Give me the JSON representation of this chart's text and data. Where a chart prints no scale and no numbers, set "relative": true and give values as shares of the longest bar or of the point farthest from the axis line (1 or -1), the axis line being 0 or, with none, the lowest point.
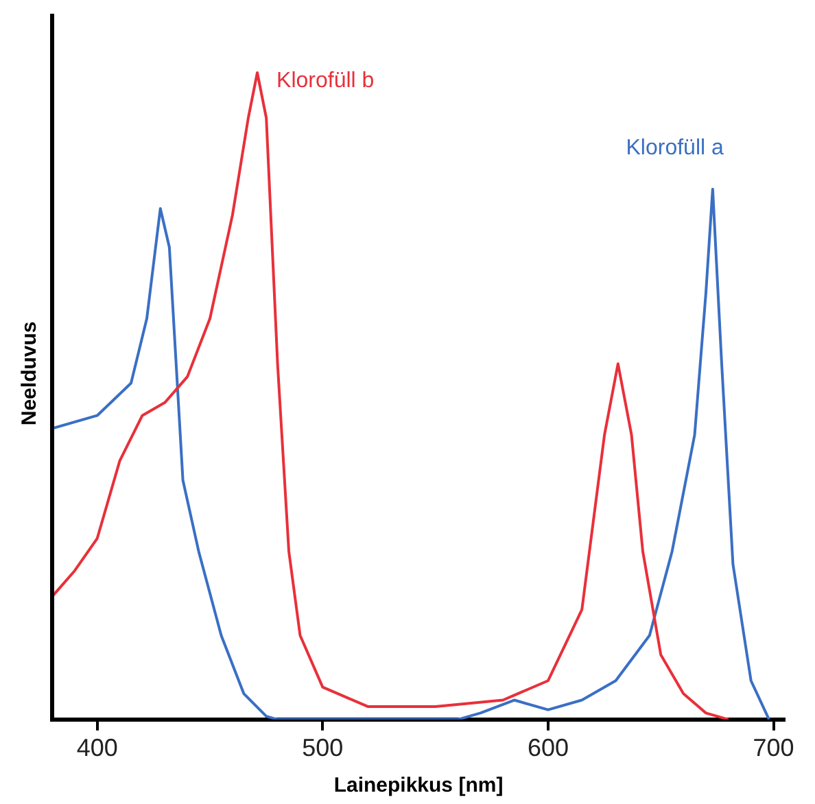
{
  "chart_data": {
    "type": "line",
    "relative": true,
    "xlabel": "Lainepikkus [nm]",
    "ylabel": "Neelduvus",
    "xlim": [
      380,
      705
    ],
    "xticks": [
      400,
      500,
      600,
      700
    ],
    "grid": false,
    "legend": false,
    "marker": "none",
    "series": [
      {
        "name": "Klorofüll b",
        "color": "#e8303a",
        "x": [
          380,
          390,
          400,
          410,
          420,
          430,
          440,
          450,
          460,
          467,
          471,
          475,
          480,
          485,
          490,
          500,
          520,
          550,
          580,
          600,
          615,
          625,
          631,
          637,
          642,
          650,
          660,
          670,
          680
        ],
        "values": [
          0.19,
          0.23,
          0.28,
          0.4,
          0.47,
          0.49,
          0.53,
          0.62,
          0.78,
          0.93,
          1,
          0.93,
          0.55,
          0.26,
          0.13,
          0.05,
          0.02,
          0.02,
          0.03,
          0.06,
          0.17,
          0.44,
          0.55,
          0.44,
          0.26,
          0.1,
          0.04,
          0.01,
          0
        ]
      },
      {
        "name": "Klorofüll a",
        "color": "#3a6fc4",
        "x": [
          380,
          400,
          415,
          422,
          428,
          432,
          438,
          445,
          455,
          465,
          475,
          480,
          500,
          530,
          560,
          570,
          585,
          600,
          615,
          630,
          645,
          655,
          665,
          670,
          673,
          677,
          682,
          690,
          698
        ],
        "values": [
          0.45,
          0.47,
          0.52,
          0.62,
          0.79,
          0.73,
          0.37,
          0.26,
          0.13,
          0.04,
          0.005,
          0,
          0,
          0,
          0,
          0.01,
          0.03,
          0.015,
          0.03,
          0.06,
          0.13,
          0.26,
          0.44,
          0.66,
          0.82,
          0.55,
          0.24,
          0.06,
          0
        ]
      }
    ]
  }
}
